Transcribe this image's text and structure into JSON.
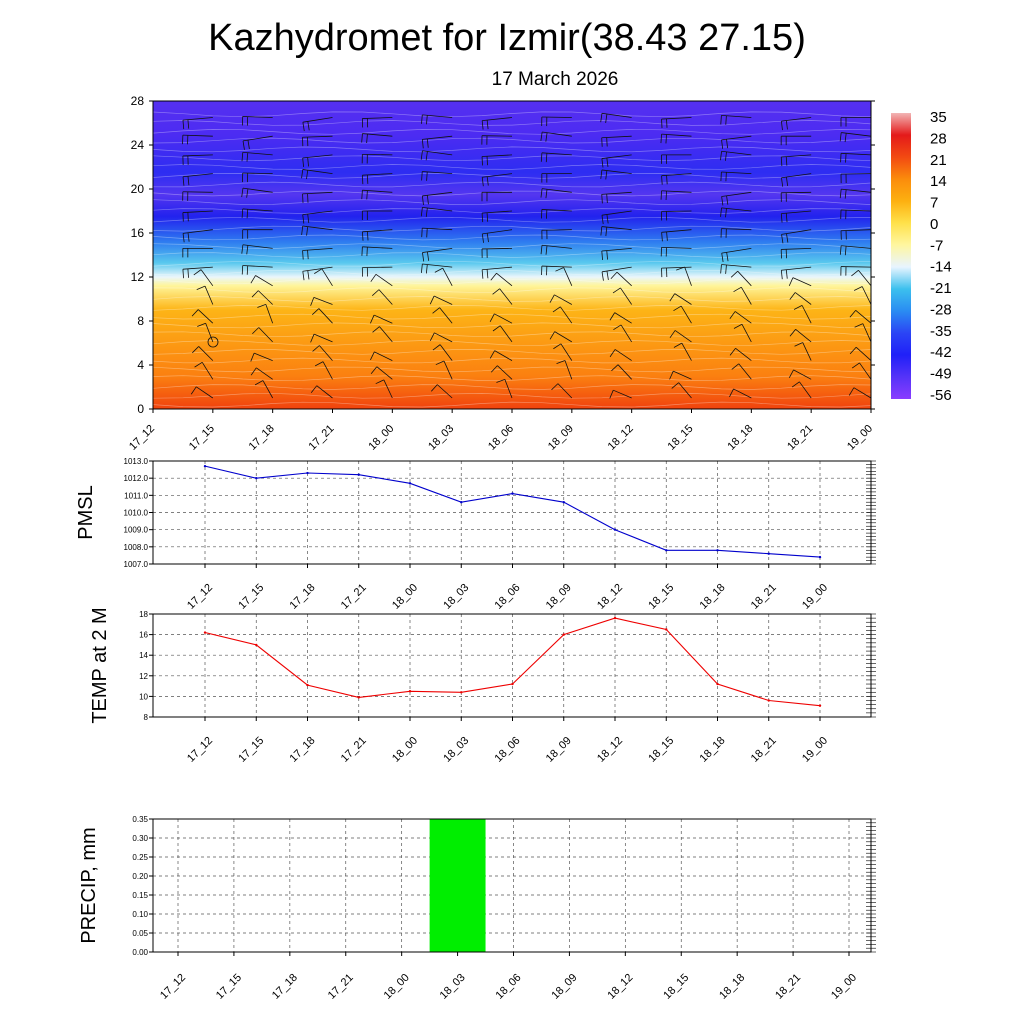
{
  "title": "Kazhydromet for Izmir(38.43 27.15)",
  "subtitle": "17 March 2026",
  "time_labels": [
    "17_12",
    "17_15",
    "17_18",
    "17_21",
    "18_00",
    "18_03",
    "18_06",
    "18_09",
    "18_12",
    "18_15",
    "18_18",
    "18_21",
    "19_00"
  ],
  "chart_data": [
    {
      "type": "heatmap",
      "name": "temperature cross-section with wind barbs",
      "ylabel": "",
      "y_ticks": [
        "0",
        "4",
        "8",
        "12",
        "16",
        "20",
        "24",
        "28"
      ],
      "ylim": [
        0,
        28
      ],
      "colorbar_labels": [
        "35",
        "28",
        "21",
        "14",
        "7",
        "0",
        "-7",
        "-14",
        "-21",
        "-28",
        "-35",
        "-42",
        "-49",
        "-56"
      ],
      "colorbar_colors": [
        "#f2b5b5",
        "#e41a1a",
        "#f24a12",
        "#fb8c0c",
        "#fdb010",
        "#ffe14a",
        "#fff6a0",
        "#e8f4ff",
        "#3cc0ee",
        "#2a8cf2",
        "#2b45f5",
        "#2020f8",
        "#5533f8",
        "#8a3cff"
      ],
      "vertical_profile_colors": [
        {
          "level": 0,
          "color": "#f0420e"
        },
        {
          "level": 3,
          "color": "#fb8010"
        },
        {
          "level": 9,
          "color": "#fdb416"
        },
        {
          "level": 11.2,
          "color": "#fff59a"
        },
        {
          "level": 12,
          "color": "#eaf6fb"
        },
        {
          "level": 13.3,
          "color": "#58c8ee"
        },
        {
          "level": 15.2,
          "color": "#2e7cf0"
        },
        {
          "level": 17.5,
          "color": "#2222ee"
        },
        {
          "level": 19.5,
          "color": "#5436f0"
        },
        {
          "level": 21.5,
          "color": "#2d2df2"
        },
        {
          "level": 25,
          "color": "#4d2cf2"
        },
        {
          "level": 28,
          "color": "#5530f0"
        }
      ]
    },
    {
      "type": "line",
      "ylabel": "PMSL",
      "ylim": [
        1007,
        1013
      ],
      "y_ticks": [
        "1007.0",
        "1008.0",
        "1009.0",
        "1010.0",
        "1011.0",
        "1012.0",
        "1013.0"
      ],
      "series": [
        {
          "name": "PMSL",
          "color": "#0000cc",
          "values": [
            1012.7,
            1012.0,
            1012.3,
            1012.2,
            1011.7,
            1010.6,
            1011.1,
            1010.6,
            1009.0,
            1007.8,
            1007.8,
            1007.6,
            1007.4
          ]
        }
      ]
    },
    {
      "type": "line",
      "ylabel": "TEMP at 2 M",
      "ylim": [
        8,
        18
      ],
      "y_ticks": [
        "8",
        "10",
        "12",
        "14",
        "16",
        "18"
      ],
      "series": [
        {
          "name": "TEMP at 2 M",
          "color": "#ee0000",
          "values": [
            16.2,
            15.0,
            11.1,
            9.9,
            10.5,
            10.4,
            11.2,
            16.0,
            17.6,
            16.5,
            11.2,
            9.6,
            9.1
          ]
        }
      ]
    },
    {
      "type": "bar",
      "ylabel": "PRECIP, mm",
      "ylim": [
        0,
        0.35
      ],
      "y_ticks": [
        "0.00",
        "0.05",
        "0.10",
        "0.15",
        "0.20",
        "0.25",
        "0.30",
        "0.35"
      ],
      "bar_color": "#00ee00",
      "series": [
        {
          "name": "PRECIP, mm",
          "values": [
            0,
            0,
            0,
            0,
            0,
            0.35,
            0,
            0,
            0,
            0,
            0,
            0,
            0
          ]
        }
      ]
    }
  ]
}
